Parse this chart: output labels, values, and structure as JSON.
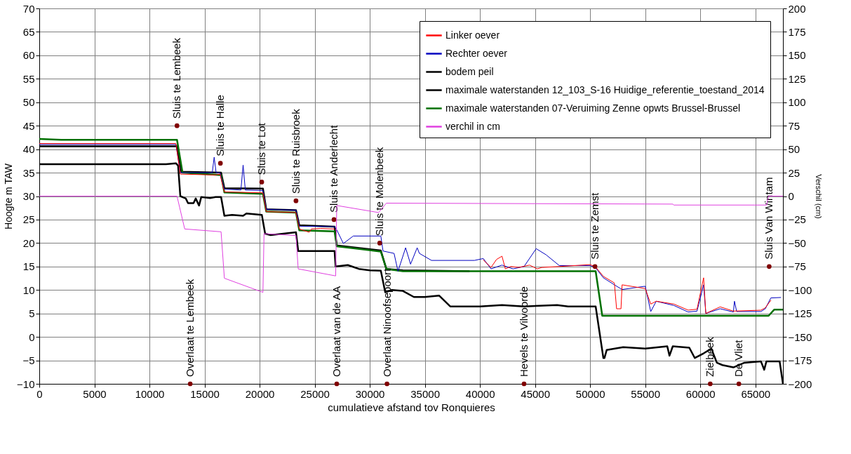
{
  "chart_data": {
    "type": "line",
    "xlabel": "cumulatieve  afstand tov Ronquieres",
    "ylabel": "Hoogte m TAW",
    "y2label": "Verschil (cm)",
    "xlim": [
      0,
      67500
    ],
    "xticks": [
      0,
      5000,
      10000,
      15000,
      20000,
      25000,
      30000,
      35000,
      40000,
      45000,
      50000,
      55000,
      60000,
      65000
    ],
    "ylim": [
      -10,
      70
    ],
    "yticks": [
      -10,
      -5,
      0,
      5,
      10,
      15,
      20,
      25,
      30,
      35,
      40,
      45,
      50,
      55,
      60,
      65,
      70
    ],
    "y2lim": [
      -200,
      200
    ],
    "y2ticks": [
      -200,
      -175,
      -150,
      -125,
      -100,
      -75,
      -50,
      -25,
      0,
      25,
      50,
      75,
      100,
      125,
      150,
      175,
      200
    ],
    "grid": true,
    "legend": "top right",
    "line_style": "solid",
    "marker": "none",
    "series": [
      {
        "name": "Linker oever",
        "color": "#ff0000",
        "x": [
          0,
          12400,
          12800,
          16000,
          16400,
          16800,
          20300,
          20600,
          23300,
          23600,
          24500,
          24700,
          25500,
          26800,
          27000,
          40300,
          41000,
          41500,
          42000,
          42300,
          42800,
          43500,
          44500,
          45200,
          45600,
          47200,
          50000,
          50500,
          51200,
          52200,
          52400,
          52800,
          52900,
          55000,
          55500,
          56000,
          57600,
          58900,
          59700,
          60300,
          60500,
          61800,
          63000,
          65500,
          65900,
          66400
        ],
        "values": [
          41.2,
          41.2,
          34.7,
          34.5,
          34.7,
          30.9,
          30.7,
          26.7,
          26.5,
          23,
          22.3,
          23,
          23.1,
          23,
          null,
          16.4,
          14.8,
          16.5,
          17.2,
          14.5,
          15,
          14.8,
          15.3,
          14.5,
          14.8,
          15,
          15.4,
          14.9,
          12.9,
          11.5,
          6,
          6,
          11.1,
          10.3,
          7,
          7.6,
          7,
          5.7,
          5.9,
          12.6,
          5,
          6.4,
          5.5,
          5.7,
          6.2,
          7.8
        ]
      },
      {
        "name": "Rechter oever",
        "color": "#0000c0",
        "x": [
          0,
          12400,
          12800,
          15700,
          15875,
          16050,
          16400,
          16800,
          18300,
          18500,
          18700,
          20300,
          20600,
          23300,
          23600,
          26800,
          27000,
          27600,
          28500,
          31000,
          31200,
          32200,
          32560,
          33250,
          33700,
          34300,
          34500,
          35600,
          39500,
          40300,
          41000,
          42000,
          43000,
          44000,
          45100,
          46000,
          47200,
          50000,
          50500,
          51200,
          52200,
          52900,
          55000,
          55500,
          56000,
          57600,
          58900,
          59700,
          60300,
          60500,
          61800,
          63000,
          63100,
          63300,
          65500,
          65900,
          66400,
          67300
        ],
        "values": [
          41,
          41,
          35,
          35,
          38.3,
          35,
          35,
          31.5,
          31.3,
          36.6,
          31.3,
          31.2,
          27.2,
          27,
          23.6,
          23.5,
          22.8,
          19.9,
          21.5,
          21.5,
          18.3,
          17.8,
          14,
          19,
          15.5,
          19,
          17.8,
          16.3,
          16.3,
          16.7,
          14.5,
          15.3,
          14.5,
          15,
          18.8,
          17.5,
          15.2,
          15.2,
          14.7,
          12.6,
          11.1,
          10.1,
          10.8,
          5.4,
          7.6,
          6.7,
          5.3,
          5.5,
          11.1,
          5,
          6,
          5.3,
          7.6,
          5.4,
          5.4,
          6,
          8.3,
          8.4
        ]
      },
      {
        "name": "bodem peil",
        "color": "#000000",
        "x": [
          0,
          11500,
          12400,
          12600,
          12800,
          13300,
          13500,
          14000,
          14200,
          14500,
          14700,
          15500,
          16000,
          16500,
          16800,
          17500,
          18500,
          18800,
          20200,
          20500,
          21000,
          23300,
          23500,
          26800,
          26900,
          28000,
          29000,
          30000,
          31000,
          31400,
          32000,
          33000,
          34000,
          35000,
          36300,
          37300,
          40000,
          42000,
          44000,
          47000,
          48000,
          50500,
          51200,
          51300,
          51500,
          53000,
          55000,
          57000,
          57200,
          57500,
          59000,
          59500,
          60300,
          61000,
          61500,
          62000,
          63000,
          64000,
          65500,
          65800,
          66000,
          67200,
          67500
        ],
        "values": [
          36.8,
          36.8,
          37,
          36.5,
          30,
          29.5,
          28.5,
          28.5,
          29.5,
          28,
          29.8,
          29.6,
          29.8,
          29.8,
          25.8,
          26,
          25.8,
          26.3,
          26,
          22,
          21.7,
          22.3,
          18.3,
          18.3,
          15,
          15.3,
          14.5,
          14.2,
          14.1,
          9.5,
          10,
          9.8,
          8.5,
          8.5,
          8.8,
          6.5,
          6.5,
          6.8,
          6.5,
          6.8,
          6.5,
          6.5,
          -4.5,
          -4.5,
          -2.8,
          -2.2,
          -2.5,
          -2,
          -4,
          -2,
          -2.3,
          -4.5,
          -3.5,
          -2.5,
          -5.5,
          -6,
          -6.5,
          -5.5,
          -5.2,
          -7,
          -5.2,
          -5.2,
          -10
        ]
      },
      {
        "name": "maximale waterstanden 12_103_S-16 Huidige_referentie_toestand_2014",
        "color": "#000000",
        "x": [
          0,
          12500,
          12900,
          16500,
          16800,
          20300,
          20600,
          23300,
          23600,
          26800,
          27000,
          31000,
          31500,
          33000,
          39000
        ],
        "values": [
          40.6,
          40.6,
          35.2,
          35,
          31.7,
          31.6,
          27.2,
          27,
          23.8,
          23.5,
          19.5,
          18.4,
          14.5,
          14.2,
          14
        ]
      },
      {
        "name": "maximale waterstanden 07-Veruiming Zenne opwts Brussel-Brussel",
        "color": "#007000",
        "x": [
          0,
          2000,
          12500,
          13000,
          16500,
          16800,
          20300,
          20600,
          23300,
          23600,
          26800,
          27000,
          31000,
          31500,
          33000,
          50500,
          51100,
          66200,
          66700,
          67500
        ],
        "values": [
          42.2,
          42,
          42,
          35,
          34.5,
          30.8,
          30.5,
          26.7,
          26.5,
          22.7,
          22.5,
          19.3,
          18.2,
          14.5,
          14,
          14,
          4.5,
          4.5,
          5.8,
          5.8
        ]
      },
      {
        "name": "verchil in cm",
        "color": "#e040e0",
        "axis": "y2",
        "x": [
          0,
          12500,
          13200,
          16500,
          16800,
          20300,
          20400,
          23300,
          23500,
          26900,
          27000,
          30800,
          31500,
          57500,
          57600,
          66000,
          66200,
          67500
        ],
        "values": [
          0,
          0,
          -35,
          -38,
          -87.5,
          -102.5,
          -40,
          -42,
          -77.5,
          -85,
          -10,
          -17.5,
          -7.5,
          -8.5,
          -9.5,
          -9.5,
          0,
          0
        ]
      },
      {
        "type": "scatter",
        "color": "#800000",
        "marker": "circle",
        "x": [
          12500,
          16440,
          20190,
          23300,
          26750,
          30900,
          50440,
          66250,
          13700,
          27000,
          31560,
          44000,
          60900,
          63500
        ],
        "values": [
          45,
          37,
          33,
          29,
          25,
          20,
          15,
          15,
          -10,
          -10,
          -10,
          -10,
          -10,
          -10
        ]
      }
    ],
    "annotations": [
      {
        "text": "Sluis te Lembeek",
        "x": 12500,
        "y": 45
      },
      {
        "text": "Sluis te Halle",
        "x": 16440,
        "y": 37
      },
      {
        "text": "Sluis te Lot",
        "x": 20190,
        "y": 33
      },
      {
        "text": "Sluis te Ruisbroek",
        "x": 23300,
        "y": 29
      },
      {
        "text": "Sluis te Anderlecht",
        "x": 26750,
        "y": 25
      },
      {
        "text": "Sluis te Molenbeek",
        "x": 30900,
        "y": 20
      },
      {
        "text": "Sluis te Zemst",
        "x": 50440,
        "y": 15
      },
      {
        "text": "Sluis Van Wintam",
        "x": 66250,
        "y": 15
      },
      {
        "text": "Overlaat  te Lembeek",
        "x": 13700,
        "y": -10
      },
      {
        "text": "Overlaat  van de AA",
        "x": 27000,
        "y": -10
      },
      {
        "text": "Overlaat  Ninoofsepoort",
        "x": 31560,
        "y": -10
      },
      {
        "text": "Hevels  te Vilvoorde",
        "x": 44000,
        "y": -10
      },
      {
        "text": "Zielbeek",
        "x": 60900,
        "y": -10
      },
      {
        "text": "De Vliet",
        "x": 63500,
        "y": -10
      }
    ]
  }
}
